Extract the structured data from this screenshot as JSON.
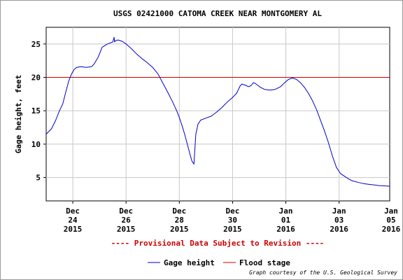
{
  "chart_data": {
    "type": "line",
    "title": "USGS 02421000 CATOMA CREEK NEAR MONTGOMERY AL",
    "xlabel": "",
    "ylabel": "Gage height, feet",
    "xlim": [
      0.0,
      12.9
    ],
    "ylim": [
      1.5,
      27.5
    ],
    "x_ticks": [
      {
        "x": 1.0,
        "lines": [
          "Dec",
          "24",
          "2015"
        ]
      },
      {
        "x": 3.0,
        "lines": [
          "Dec",
          "26",
          "2015"
        ]
      },
      {
        "x": 5.0,
        "lines": [
          "Dec",
          "28",
          "2015"
        ]
      },
      {
        "x": 7.0,
        "lines": [
          "Dec",
          "30",
          "2015"
        ]
      },
      {
        "x": 9.0,
        "lines": [
          "Jan",
          "01",
          "2016"
        ]
      },
      {
        "x": 11.0,
        "lines": [
          "Jan",
          "03",
          "2016"
        ]
      },
      {
        "x": 13.0,
        "lines": [
          "Jan",
          "05",
          "2016"
        ]
      }
    ],
    "y_ticks": [
      5,
      10,
      15,
      20,
      25
    ],
    "grid": true,
    "reference_lines": [
      {
        "name": "Flood stage",
        "y": 20,
        "color": "#cc0000"
      }
    ],
    "series": [
      {
        "name": "Gage height",
        "color": "#0000cc",
        "x": [
          0.0,
          0.2,
          0.35,
          0.5,
          0.62,
          0.75,
          0.85,
          0.95,
          1.05,
          1.15,
          1.3,
          1.5,
          1.7,
          1.8,
          1.95,
          2.1,
          2.3,
          2.5,
          2.55,
          2.57,
          2.6,
          2.7,
          2.85,
          3.0,
          3.2,
          3.4,
          3.6,
          3.8,
          4.0,
          4.2,
          4.4,
          4.6,
          4.75,
          4.9,
          5.0,
          5.1,
          5.2,
          5.3,
          5.4,
          5.47,
          5.55,
          5.62,
          5.7,
          5.8,
          6.0,
          6.2,
          6.4,
          6.6,
          6.8,
          7.0,
          7.15,
          7.28,
          7.35,
          7.5,
          7.6,
          7.7,
          7.78,
          7.85,
          7.95,
          8.05,
          8.2,
          8.4,
          8.6,
          8.8,
          8.95,
          9.1,
          9.25,
          9.4,
          9.55,
          9.7,
          9.85,
          10.0,
          10.15,
          10.3,
          10.45,
          10.6,
          10.75,
          10.9,
          11.05,
          11.2,
          11.35,
          11.5,
          11.7,
          11.9,
          12.1,
          12.3,
          12.5,
          12.7,
          12.9
        ],
        "y": [
          11.5,
          12.3,
          13.5,
          15.0,
          16.0,
          18.0,
          19.5,
          20.5,
          21.2,
          21.5,
          21.6,
          21.5,
          21.6,
          22.0,
          23.0,
          24.5,
          25.0,
          25.3,
          26.0,
          25.3,
          25.5,
          25.6,
          25.4,
          25.0,
          24.3,
          23.5,
          22.8,
          22.2,
          21.5,
          20.5,
          19.0,
          17.5,
          16.3,
          15.0,
          14.0,
          12.8,
          11.5,
          10.0,
          8.5,
          7.5,
          7.0,
          11.5,
          13.0,
          13.6,
          13.9,
          14.2,
          14.8,
          15.5,
          16.3,
          17.0,
          17.6,
          18.7,
          19.0,
          18.8,
          18.6,
          18.8,
          19.2,
          19.1,
          18.8,
          18.5,
          18.2,
          18.1,
          18.2,
          18.6,
          19.2,
          19.7,
          19.9,
          19.7,
          19.2,
          18.5,
          17.6,
          16.5,
          15.2,
          13.6,
          12.0,
          10.2,
          8.2,
          6.5,
          5.6,
          5.2,
          4.8,
          4.5,
          4.3,
          4.1,
          4.0,
          3.9,
          3.8,
          3.75,
          3.7
        ]
      }
    ],
    "notice": "---- Provisional Data Subject to Revision ----",
    "legend": [
      "Gage height",
      "Flood stage"
    ],
    "legend_position": "bottom-center",
    "credit": "Graph courtesy of the U.S. Geological Survey"
  }
}
